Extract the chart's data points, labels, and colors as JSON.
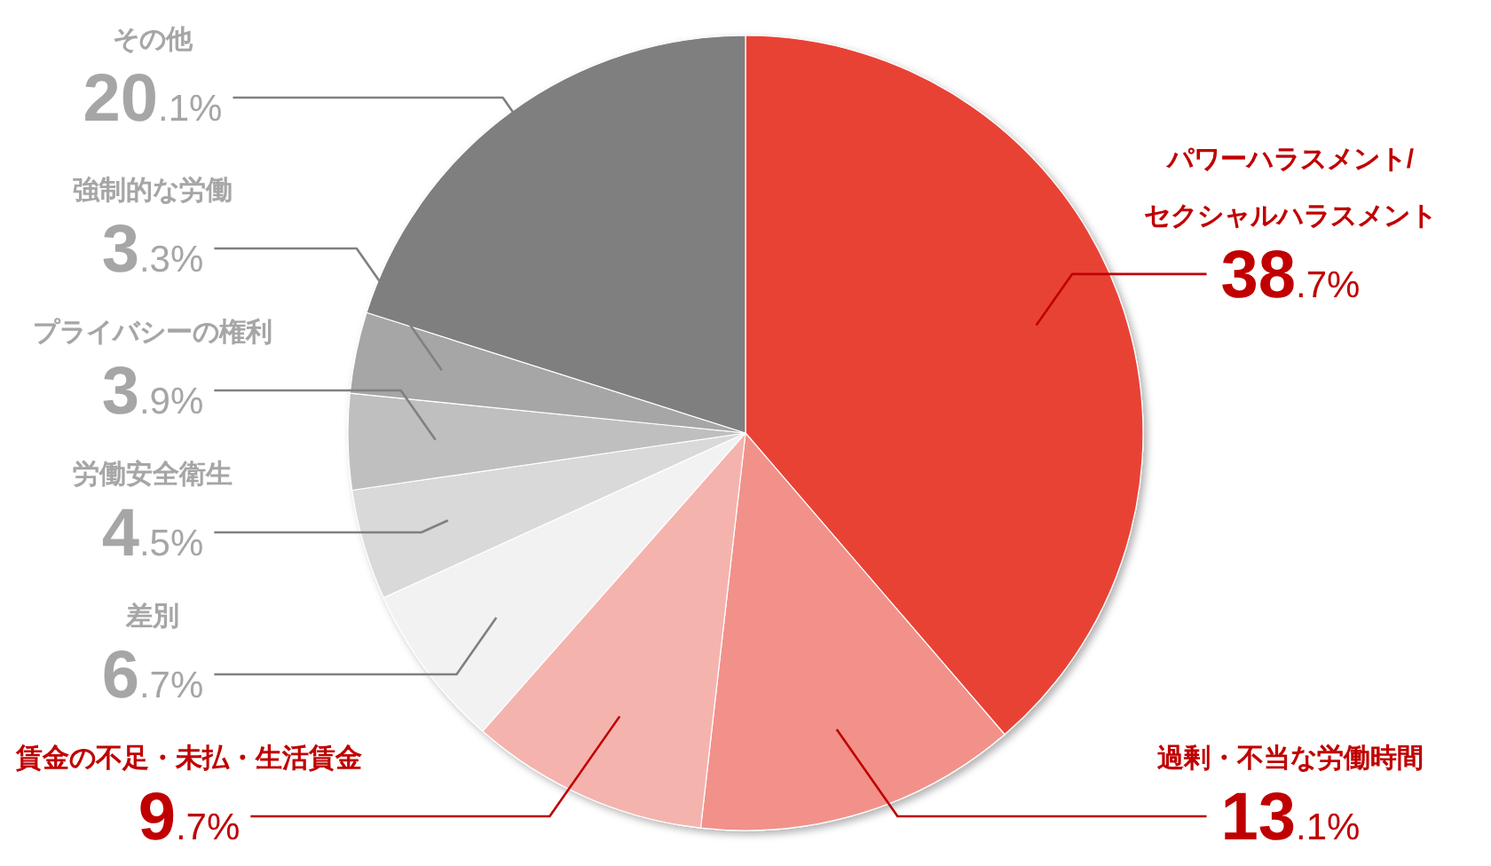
{
  "chart_data": {
    "type": "pie",
    "categories": [
      "パワーハラスメント/\nセクシャルハラスメント",
      "過剰・不当な労働時間",
      "賃金の不足・未払・生活賃金",
      "差別",
      "労働安全衛生",
      "プライバシーの権利",
      "強制的な労働",
      "その他"
    ],
    "values": [
      38.7,
      13.1,
      9.7,
      6.7,
      4.5,
      3.9,
      3.3,
      20.1
    ],
    "colors": [
      "#e84336",
      "#f1918a",
      "#f5b3ae",
      "#f2f2f2",
      "#d9d9d9",
      "#bfbfbf",
      "#a6a6a6",
      "#7f7f7f"
    ],
    "value_labels": [
      "38.7%",
      "13.1%",
      "9.7%",
      "6.7%",
      "4.5%",
      "3.9%",
      "3.3%",
      "20.1%"
    ]
  }
}
